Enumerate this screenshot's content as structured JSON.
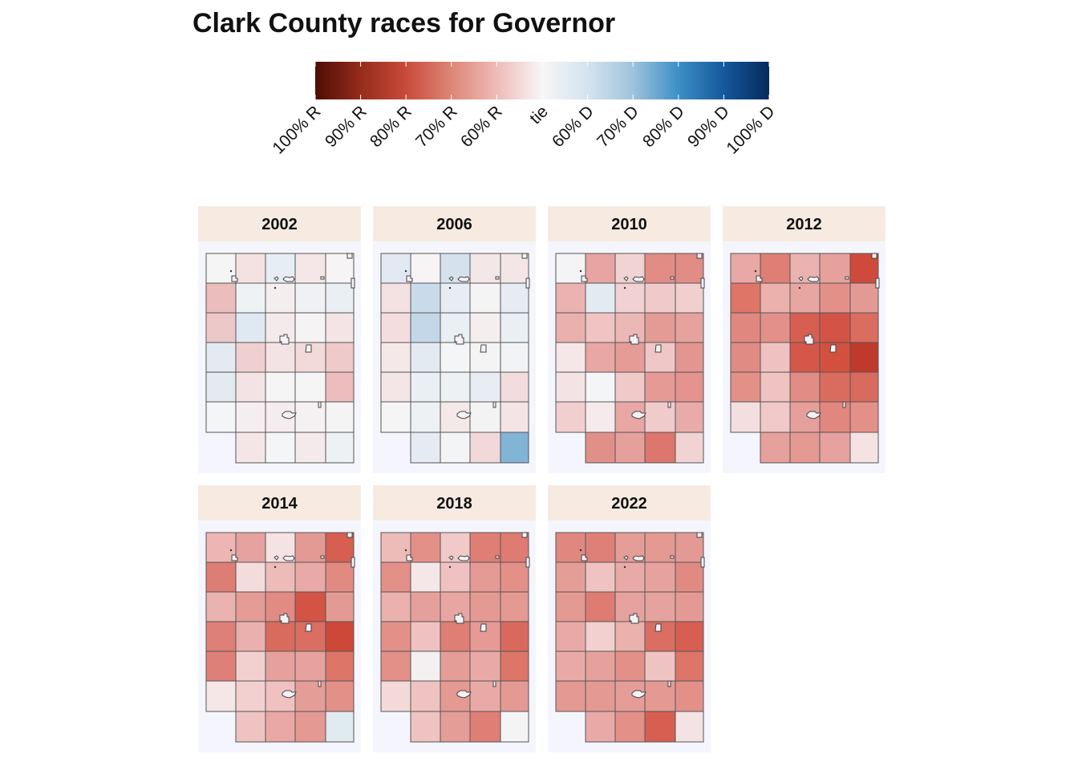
{
  "title": "Clark County races for Governor",
  "legend": {
    "labels": [
      "100% R",
      "90% R",
      "80% R",
      "70% R",
      "60% R",
      "tie",
      "60% D",
      "70% D",
      "80% D",
      "90% D",
      "100% D"
    ],
    "colors": [
      "#4d0d04",
      "#962c1c",
      "#c84b3a",
      "#de8677",
      "#eebbb6",
      "#f6f6f7",
      "#d4e3ef",
      "#9fc3dd",
      "#3d8fc5",
      "#15589e",
      "#062a5c"
    ]
  },
  "panels": [
    {
      "year": "2002",
      "col": 0,
      "row": 0,
      "cells": [
        [
          "#f6f5f6",
          "#f4e2e3",
          "#e6edf4",
          "#f5e6e7",
          "#f6f4f5"
        ],
        [
          "#ebbdbd",
          "#eef2f5",
          "#f5eeef",
          "#eff1f4",
          "#eaeff4"
        ],
        [
          "#edc8c8",
          "#e0e9f2",
          "#f4eaeb",
          "#f5f3f4",
          "#f4e4e5"
        ],
        [
          "#e3eaf1",
          "#f0cfd0",
          "#f4e3e4",
          "#f2d9da",
          "#efcaca"
        ],
        [
          "#e3eaf1",
          "#f4e3e4",
          "#f5f5f6",
          "#f6f5f6",
          "#edbcbc"
        ],
        [
          "#f4f5f6",
          "#f5eef0",
          "#f4ecee",
          "#f5f1f2",
          "#f4f4f5"
        ],
        [
          null,
          "#f4e6e7",
          "#f4f5f6",
          "#f4e9eb",
          "#eef1f4"
        ]
      ]
    },
    {
      "year": "2006",
      "col": 1,
      "row": 0,
      "cells": [
        [
          "#e3e9f2",
          "#f6f4f5",
          "#d5e2ee",
          "#f4e7e8",
          "#f4e6e7"
        ],
        [
          "#f4e2e3",
          "#c9dbea",
          "#e7edf3",
          "#f4f4f5",
          "#e7ecf3"
        ],
        [
          "#f3dddf",
          "#c3d7e8",
          "#eaeff4",
          "#f4eeef",
          "#eaeff4"
        ],
        [
          "#f4e8e9",
          "#e3eaf1",
          "#f4f5f6",
          "#f4f4f5",
          "#f1f3f5"
        ],
        [
          "#f4e5e6",
          "#eaeff4",
          "#eef1f4",
          "#e8edf3",
          "#f2dcdd"
        ],
        [
          "#f5f5f6",
          "#eef1f4",
          "#f4e8e9",
          "#f4f3f4",
          "#f4e4e5"
        ],
        [
          null,
          "#e5ebf2",
          "#f3f4f5",
          "#f2d8d9",
          "#82b4d6"
        ]
      ]
    },
    {
      "year": "2010",
      "col": 2,
      "row": 0,
      "cells": [
        [
          "#f4f4f6",
          "#e8a4a2",
          "#f1d3d3",
          "#e28c86",
          "#e28c86"
        ],
        [
          "#eab2b0",
          "#e3ebf2",
          "#f1d1d1",
          "#f0cacb",
          "#f1cfcf"
        ],
        [
          "#eab0ae",
          "#efc4c3",
          "#ecb8b6",
          "#e49a95",
          "#e6a29d"
        ],
        [
          "#f5e6e7",
          "#e8a7a4",
          "#e59c97",
          "#efc7c6",
          "#e39590"
        ],
        [
          "#f4e3e4",
          "#f4f5f6",
          "#f0c9c9",
          "#e59a96",
          "#e4938e"
        ],
        [
          "#f1cfcf",
          "#f5ebec",
          "#e8a7a4",
          "#f0cbcb",
          "#e9abaa"
        ],
        [
          null,
          "#e19089",
          "#e6a09c",
          "#dd766c",
          "#f1d3d3"
        ]
      ]
    },
    {
      "year": "2012",
      "col": 3,
      "row": 0,
      "cells": [
        [
          "#e9a8a5",
          "#df7e74",
          "#eab3b0",
          "#e6a19c",
          "#cf4a3c"
        ],
        [
          "#de7566",
          "#eab1ad",
          "#e8a6a3",
          "#e39089",
          "#e49a94"
        ],
        [
          "#e08880",
          "#e3908a",
          "#d65f52",
          "#d35446",
          "#db6c60"
        ],
        [
          "#e08b84",
          "#efc2c1",
          "#d55749",
          "#d3503f",
          "#bf3a2a"
        ],
        [
          "#e39089",
          "#efc3c1",
          "#e18c84",
          "#da6c5f",
          "#d96b5e"
        ],
        [
          "#f4dfe0",
          "#f1c9c8",
          "#e6a09b",
          "#e1877f",
          "#e39089"
        ],
        [
          null,
          "#e6a19c",
          "#e49992",
          "#e6a29e",
          "#f5e3e4"
        ]
      ]
    },
    {
      "year": "2014",
      "col": 0,
      "row": 1,
      "cells": [
        [
          "#edb6b4",
          "#e6a29e",
          "#f5e2e3",
          "#e49a94",
          "#d65f52"
        ],
        [
          "#de7d74",
          "#f4dcdc",
          "#edbbb8",
          "#e9aaa7",
          "#e18a82"
        ],
        [
          "#eab3b0",
          "#e59b96",
          "#e18b84",
          "#d35444",
          "#e49a94"
        ],
        [
          "#df8078",
          "#eab0ae",
          "#d96b5e",
          "#da6e62",
          "#cd4838"
        ],
        [
          "#df8078",
          "#f2d0d0",
          "#e6a19c",
          "#e6a29e",
          "#dd7569"
        ],
        [
          "#f5e6e7",
          "#f2d0d0",
          "#efc2c1",
          "#e59d98",
          "#e39089"
        ],
        [
          null,
          "#efc3c1",
          "#e9a8a5",
          "#e49992",
          "#e1e9f1"
        ]
      ]
    },
    {
      "year": "2018",
      "col": 1,
      "row": 1,
      "cells": [
        [
          "#edbcb9",
          "#e39089",
          "#f0c9c8",
          "#df7e74",
          "#de7b72"
        ],
        [
          "#e39089",
          "#f5e7e8",
          "#efc2c1",
          "#e59a96",
          "#e39089"
        ],
        [
          "#eab1ad",
          "#e6a09c",
          "#e8a6a3",
          "#e49992",
          "#e49992"
        ],
        [
          "#e39089",
          "#efc2c1",
          "#df7e74",
          "#e59a96",
          "#d9695c"
        ],
        [
          "#e39089",
          "#f4f0f1",
          "#e59d98",
          "#e9aaa7",
          "#dd7569"
        ],
        [
          "#f3dad9",
          "#efc3c1",
          "#e49992",
          "#e9aaa7",
          "#e49a94"
        ],
        [
          null,
          "#efc3c1",
          "#e59d98",
          "#df7e74",
          "#f4f4f5"
        ]
      ]
    },
    {
      "year": "2022",
      "col": 2,
      "row": 1,
      "cells": [
        [
          "#e08880",
          "#df8078",
          "#e59d98",
          "#e49992",
          "#e49a94"
        ],
        [
          "#e59d98",
          "#efc3c1",
          "#e9aaa7",
          "#e6a29e",
          "#e18a82"
        ],
        [
          "#e49992",
          "#de7b72",
          "#e6a29e",
          "#e6a29e",
          "#e49a94"
        ],
        [
          "#e9aaa7",
          "#f2d0d0",
          "#eab1ad",
          "#da6e62",
          "#d65f52"
        ],
        [
          "#e9aaa7",
          "#e6a19c",
          "#e39089",
          "#efc3c1",
          "#dd7569"
        ],
        [
          "#e49992",
          "#e49992",
          "#e59d98",
          "#e49992",
          "#e39089"
        ],
        [
          null,
          "#e9aaa7",
          "#e39089",
          "#d65f52",
          "#f4e3e4"
        ]
      ]
    }
  ]
}
